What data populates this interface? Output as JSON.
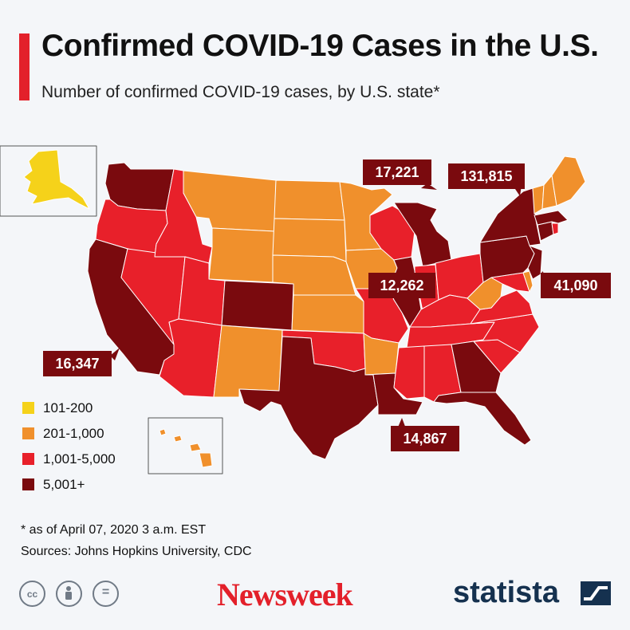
{
  "header": {
    "title": "Confirmed COVID-19 Cases in the U.S.",
    "subtitle": "Number of confirmed COVID-19 cases, by U.S. state*"
  },
  "colors": {
    "accent": "#e3202a",
    "background": "#f4f6f9",
    "label_box": "#7a0a0e",
    "brand_statista": "#15314f"
  },
  "legend": {
    "items": [
      {
        "label": "101-200",
        "color": "#f5d21a"
      },
      {
        "label": "201-1,000",
        "color": "#f0902c"
      },
      {
        "label": "1,001-5,000",
        "color": "#e8202a"
      },
      {
        "label": "5,001+",
        "color": "#7a0a0e"
      }
    ]
  },
  "map": {
    "case_labels": [
      {
        "state": "CA",
        "value": "16,347"
      },
      {
        "state": "MI",
        "value": "17,221"
      },
      {
        "state": "NY",
        "value": "131,815"
      },
      {
        "state": "IL",
        "value": "12,262"
      },
      {
        "state": "NJ",
        "value": "41,090"
      },
      {
        "state": "LA",
        "value": "14,867"
      }
    ],
    "state_colors": {
      "AK": "#f5d21a",
      "WA": "#7a0a0e",
      "OR": "#e8202a",
      "CA": "#7a0a0e",
      "NV": "#e8202a",
      "ID": "#e8202a",
      "MT": "#f0902c",
      "WY": "#f0902c",
      "UT": "#e8202a",
      "AZ": "#e8202a",
      "CO": "#7a0a0e",
      "NM": "#f0902c",
      "ND": "#f0902c",
      "SD": "#f0902c",
      "NE": "#f0902c",
      "KS": "#f0902c",
      "OK": "#e8202a",
      "TX": "#7a0a0e",
      "MN": "#f0902c",
      "IA": "#f0902c",
      "MO": "#e8202a",
      "AR": "#f0902c",
      "LA": "#7a0a0e",
      "WI": "#e8202a",
      "IL": "#7a0a0e",
      "MI": "#7a0a0e",
      "IN": "#e8202a",
      "OH": "#e8202a",
      "KY": "#e8202a",
      "TN": "#e8202a",
      "MS": "#e8202a",
      "AL": "#e8202a",
      "GA": "#7a0a0e",
      "FL": "#7a0a0e",
      "SC": "#e8202a",
      "NC": "#e8202a",
      "VA": "#e8202a",
      "WV": "#f0902c",
      "MD": "#e8202a",
      "DE": "#f0902c",
      "PA": "#7a0a0e",
      "NJ": "#7a0a0e",
      "NY": "#7a0a0e",
      "CT": "#7a0a0e",
      "RI": "#e8202a",
      "MA": "#7a0a0e",
      "VT": "#f0902c",
      "NH": "#f0902c",
      "ME": "#f0902c",
      "HI": "#f0902c"
    }
  },
  "footer": {
    "note": "* as of April 07, 2020 3 a.m. EST",
    "sources": "Sources: Johns Hopkins University, CDC",
    "cc_icons": [
      "cc-icon",
      "by-person-icon",
      "nd-equals-icon"
    ],
    "cc_text": "cc",
    "nd_text": "=",
    "newsweek": "Newsweek",
    "statista": "statista"
  }
}
